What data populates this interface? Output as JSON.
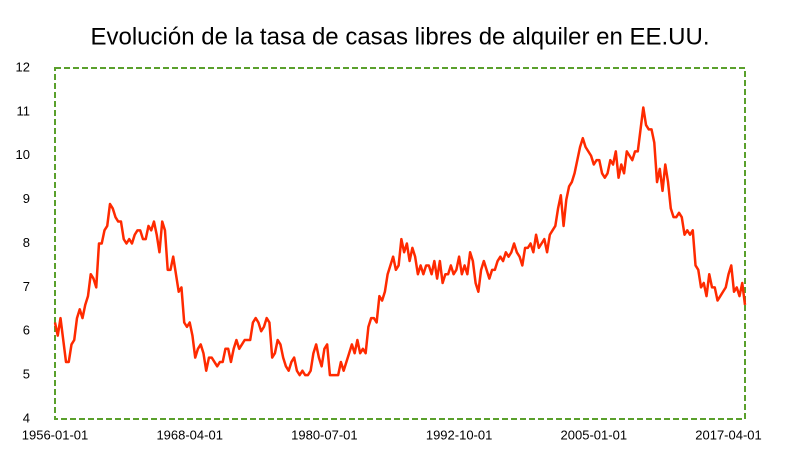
{
  "chart_data": {
    "type": "line",
    "title": "Evolución de la tasa de casas libres de alquiler en EE.UU.",
    "categories": [
      "1956-01-01",
      null,
      null,
      null,
      null,
      null,
      null,
      null,
      null,
      null,
      null,
      null,
      null,
      null,
      null,
      null,
      null,
      null,
      null,
      null,
      null,
      null,
      null,
      null,
      null,
      null,
      null,
      null,
      null,
      null,
      null,
      null,
      null,
      null,
      null,
      null,
      null,
      null,
      null,
      null,
      null,
      null,
      null,
      null,
      null,
      null,
      null,
      null,
      null,
      "1968-04-01",
      null,
      null,
      null,
      null,
      null,
      null,
      null,
      null,
      null,
      null,
      null,
      null,
      null,
      null,
      null,
      null,
      null,
      null,
      null,
      null,
      null,
      null,
      null,
      null,
      null,
      null,
      null,
      null,
      null,
      null,
      null,
      null,
      null,
      null,
      null,
      null,
      null,
      null,
      null,
      null,
      null,
      null,
      null,
      null,
      null,
      null,
      null,
      null,
      "1980-07-01",
      null,
      null,
      null,
      null,
      null,
      null,
      null,
      null,
      null,
      null,
      null,
      null,
      null,
      null,
      null,
      null,
      null,
      null,
      null,
      null,
      null,
      null,
      null,
      null,
      null,
      null,
      null,
      null,
      null,
      null,
      null,
      null,
      null,
      null,
      null,
      null,
      null,
      null,
      null,
      null,
      null,
      null,
      null,
      null,
      null,
      null,
      null,
      null,
      "1992-10-01",
      null,
      null,
      null,
      null,
      null,
      null,
      null,
      null,
      null,
      null,
      null,
      null,
      null,
      null,
      null,
      null,
      null,
      null,
      null,
      null,
      null,
      null,
      null,
      null,
      null,
      null,
      null,
      null,
      null,
      null,
      null,
      null,
      null,
      null,
      null,
      null,
      null,
      null,
      null,
      null,
      null,
      null,
      null,
      null,
      null,
      null,
      null,
      null,
      "2005-01-01",
      null,
      null,
      null,
      null,
      null,
      null,
      null,
      null,
      null,
      null,
      null,
      null,
      null,
      null,
      null,
      null,
      null,
      null,
      null,
      null,
      null,
      null,
      null,
      null,
      null,
      null,
      null,
      null,
      null,
      null,
      null,
      null,
      null,
      null,
      null,
      null,
      null,
      null,
      null,
      null,
      null,
      null,
      null,
      null,
      null,
      null,
      null,
      null,
      "2017-04-01",
      null,
      null,
      null,
      null,
      null,
      null
    ],
    "values": [
      6.2,
      5.9,
      6.3,
      5.8,
      5.3,
      5.3,
      5.7,
      5.8,
      6.3,
      6.5,
      6.3,
      6.6,
      6.8,
      7.3,
      7.2,
      7.0,
      8.0,
      8.0,
      8.3,
      8.4,
      8.9,
      8.8,
      8.6,
      8.5,
      8.5,
      8.1,
      8.0,
      8.1,
      8.0,
      8.2,
      8.3,
      8.3,
      8.1,
      8.1,
      8.4,
      8.3,
      8.5,
      8.2,
      7.8,
      8.5,
      8.3,
      7.4,
      7.4,
      7.7,
      7.3,
      6.9,
      7.0,
      6.2,
      6.1,
      6.2,
      5.9,
      5.4,
      5.6,
      5.7,
      5.5,
      5.1,
      5.4,
      5.4,
      5.3,
      5.2,
      5.3,
      5.3,
      5.6,
      5.6,
      5.3,
      5.6,
      5.8,
      5.6,
      5.7,
      5.8,
      5.8,
      5.8,
      6.2,
      6.3,
      6.2,
      6.0,
      6.1,
      6.3,
      6.2,
      5.4,
      5.5,
      5.8,
      5.7,
      5.4,
      5.2,
      5.1,
      5.3,
      5.4,
      5.1,
      5.0,
      5.1,
      5.0,
      5.0,
      5.1,
      5.5,
      5.7,
      5.4,
      5.2,
      5.6,
      5.7,
      5.0,
      5.0,
      5.0,
      5.0,
      5.3,
      5.1,
      5.3,
      5.5,
      5.7,
      5.5,
      5.8,
      5.5,
      5.6,
      5.5,
      6.1,
      6.3,
      6.3,
      6.2,
      6.8,
      6.7,
      6.9,
      7.3,
      7.5,
      7.7,
      7.4,
      7.5,
      8.1,
      7.8,
      8.0,
      7.6,
      7.9,
      7.7,
      7.3,
      7.5,
      7.3,
      7.5,
      7.5,
      7.3,
      7.6,
      7.2,
      7.6,
      7.1,
      7.3,
      7.3,
      7.5,
      7.3,
      7.4,
      7.7,
      7.3,
      7.5,
      7.3,
      7.8,
      7.6,
      7.1,
      6.9,
      7.4,
      7.6,
      7.4,
      7.2,
      7.4,
      7.4,
      7.6,
      7.7,
      7.6,
      7.8,
      7.7,
      7.8,
      8.0,
      7.8,
      7.7,
      7.5,
      7.9,
      7.9,
      8.0,
      7.8,
      8.2,
      7.9,
      8.0,
      8.1,
      7.8,
      8.2,
      8.3,
      8.4,
      8.8,
      9.1,
      8.4,
      9.0,
      9.3,
      9.4,
      9.6,
      9.9,
      10.2,
      10.4,
      10.2,
      10.1,
      10.0,
      9.8,
      9.9,
      9.9,
      9.6,
      9.5,
      9.6,
      9.9,
      9.8,
      10.1,
      9.5,
      9.8,
      9.6,
      10.1,
      10.0,
      9.9,
      10.1,
      10.1,
      10.6,
      11.1,
      10.7,
      10.6,
      10.6,
      10.3,
      9.4,
      9.7,
      9.2,
      9.8,
      9.4,
      8.8,
      8.6,
      8.6,
      8.7,
      8.6,
      8.2,
      8.3,
      8.2,
      8.3,
      7.5,
      7.4,
      7.0,
      7.1,
      6.8,
      7.3,
      7.0,
      7.0,
      6.7,
      6.8,
      6.9,
      7.0,
      7.3,
      7.5,
      6.9,
      7.0,
      6.8,
      7.1,
      6.6
    ],
    "color": "#ff2a00",
    "ylim": [
      4,
      12
    ],
    "yticks": [
      4,
      5,
      6,
      7,
      8,
      9,
      10,
      11,
      12
    ],
    "frame_color": "#5aa02c"
  }
}
